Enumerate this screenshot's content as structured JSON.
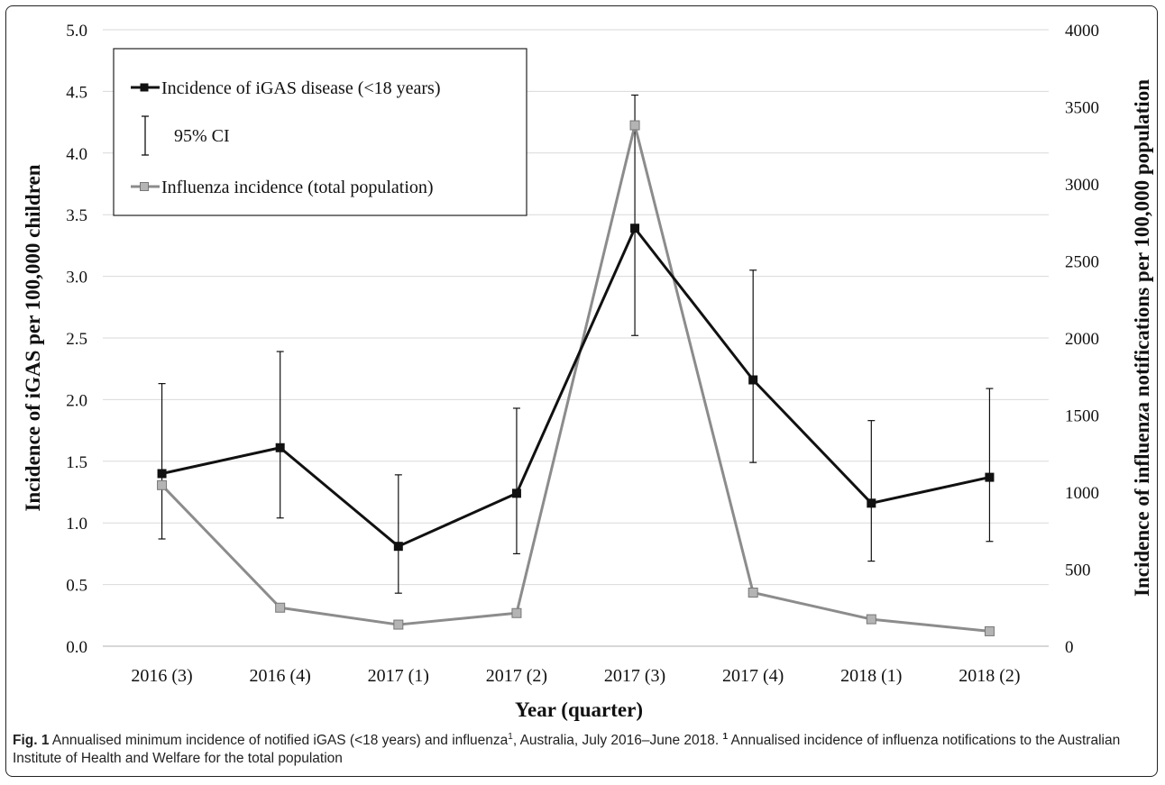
{
  "chart_data": {
    "type": "line",
    "xlabel": "Year (quarter)",
    "ylabel_left": "Incidence of iGAS per 100,000 children",
    "ylabel_right": "Incidence of influenza notifications per 100,000 population",
    "categories": [
      "2016 (3)",
      "2016 (4)",
      "2017 (1)",
      "2017 (2)",
      "2017 (3)",
      "2017 (4)",
      "2018 (1)",
      "2018 (2)"
    ],
    "y_left": {
      "min": 0,
      "max": 5,
      "step": 0.5,
      "ticks": [
        "0.0",
        "0.5",
        "1.0",
        "1.5",
        "2.0",
        "2.5",
        "3.0",
        "3.5",
        "4.0",
        "4.5",
        "5.0"
      ]
    },
    "y_right": {
      "min": 0,
      "max": 4000,
      "step": 500,
      "ticks": [
        "0",
        "500",
        "1000",
        "1500",
        "2000",
        "2500",
        "3000",
        "3500",
        "4000"
      ]
    },
    "grid": true,
    "legend_position": "top-left",
    "legend": {
      "igas": "Incidence of iGAS disease (<18 years)",
      "ci": "95% CI",
      "flu": "Influenza incidence (total population)"
    },
    "series": [
      {
        "name": "Incidence of iGAS disease (<18 years)",
        "axis": "left",
        "color": "#111111",
        "values": [
          1.4,
          1.61,
          0.81,
          1.24,
          3.39,
          2.16,
          1.16,
          1.37
        ],
        "ci_lower": [
          0.87,
          1.04,
          0.43,
          0.75,
          2.52,
          1.49,
          0.69,
          0.85
        ],
        "ci_upper": [
          2.13,
          2.39,
          1.39,
          1.93,
          4.47,
          3.05,
          1.83,
          2.09
        ]
      },
      {
        "name": "Influenza incidence (total population)",
        "axis": "right",
        "color": "#8c8c8c",
        "values": [
          1045,
          250,
          140,
          215,
          3380,
          348,
          175,
          97
        ]
      }
    ]
  },
  "caption": {
    "label": "Fig. 1",
    "text_part1": " Annualised minimum incidence of notified iGAS (<18 years) and influenza",
    "sup1": "1",
    "text_part2": ", Australia, July 2016–June 2018. ",
    "sup2": "1",
    "text_part3": " Annualised incidence of influenza notifications to the Australian Institute of Health and Welfare for the total population"
  }
}
